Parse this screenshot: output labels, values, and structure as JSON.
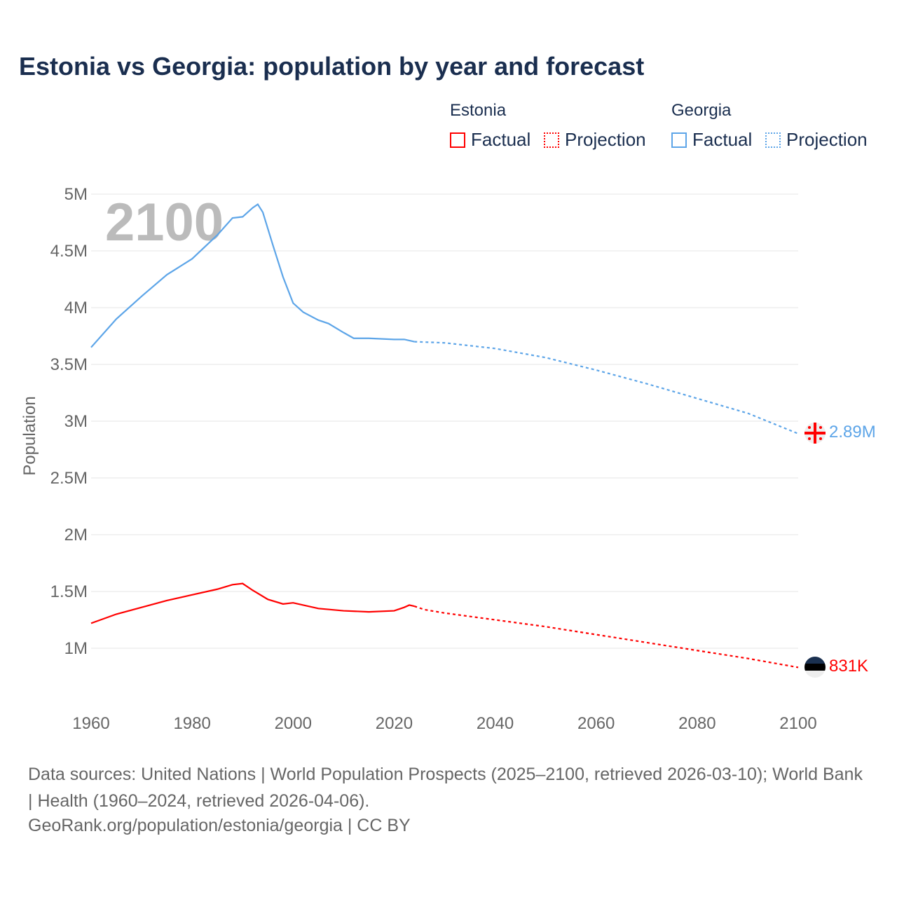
{
  "chart_data": {
    "type": "line",
    "title": "Estonia vs Georgia: population by year and forecast",
    "ylabel": "Population",
    "xlabel": "",
    "xlim": [
      1960,
      2100
    ],
    "ylim": [
      0.5,
      5
    ],
    "x_ticks": [
      1960,
      1980,
      2000,
      2020,
      2040,
      2060,
      2080,
      2100
    ],
    "x_tick_labels": [
      "1960",
      "1980",
      "2000",
      "2020",
      "2040",
      "2060",
      "2080",
      "2100"
    ],
    "y_ticks": [
      1,
      1.5,
      2,
      2.5,
      3,
      3.5,
      4,
      4.5,
      5
    ],
    "y_tick_labels": [
      "1M",
      "1.5M",
      "2M",
      "2.5M",
      "3M",
      "3.5M",
      "4M",
      "4.5M",
      "5M"
    ],
    "year_watermark": "2100",
    "series": [
      {
        "name": "Georgia",
        "color": "#5da5e8",
        "end_label": "2.89M",
        "factual": [
          [
            1960,
            3.65
          ],
          [
            1963,
            3.8
          ],
          [
            1965,
            3.9
          ],
          [
            1970,
            4.1
          ],
          [
            1975,
            4.29
          ],
          [
            1980,
            4.43
          ],
          [
            1985,
            4.64
          ],
          [
            1988,
            4.79
          ],
          [
            1990,
            4.8
          ],
          [
            1992,
            4.88
          ],
          [
            1993,
            4.91
          ],
          [
            1994,
            4.84
          ],
          [
            1996,
            4.55
          ],
          [
            1998,
            4.27
          ],
          [
            2000,
            4.04
          ],
          [
            2002,
            3.96
          ],
          [
            2005,
            3.89
          ],
          [
            2007,
            3.86
          ],
          [
            2010,
            3.78
          ],
          [
            2012,
            3.73
          ],
          [
            2015,
            3.73
          ],
          [
            2020,
            3.72
          ],
          [
            2022,
            3.72
          ],
          [
            2024,
            3.7
          ]
        ],
        "projection": [
          [
            2024,
            3.7
          ],
          [
            2030,
            3.69
          ],
          [
            2040,
            3.64
          ],
          [
            2050,
            3.56
          ],
          [
            2060,
            3.45
          ],
          [
            2070,
            3.33
          ],
          [
            2080,
            3.2
          ],
          [
            2090,
            3.07
          ],
          [
            2100,
            2.89
          ]
        ]
      },
      {
        "name": "Estonia",
        "color": "#ff0000",
        "end_label": "831K",
        "factual": [
          [
            1960,
            1.22
          ],
          [
            1965,
            1.3
          ],
          [
            1970,
            1.36
          ],
          [
            1975,
            1.42
          ],
          [
            1980,
            1.47
          ],
          [
            1985,
            1.52
          ],
          [
            1988,
            1.56
          ],
          [
            1990,
            1.57
          ],
          [
            1992,
            1.51
          ],
          [
            1995,
            1.43
          ],
          [
            1998,
            1.39
          ],
          [
            2000,
            1.4
          ],
          [
            2005,
            1.35
          ],
          [
            2010,
            1.33
          ],
          [
            2015,
            1.32
          ],
          [
            2020,
            1.33
          ],
          [
            2022,
            1.36
          ],
          [
            2023,
            1.38
          ],
          [
            2024,
            1.37
          ]
        ],
        "projection": [
          [
            2024,
            1.37
          ],
          [
            2026,
            1.34
          ],
          [
            2030,
            1.31
          ],
          [
            2040,
            1.25
          ],
          [
            2050,
            1.19
          ],
          [
            2060,
            1.12
          ],
          [
            2070,
            1.05
          ],
          [
            2080,
            0.98
          ],
          [
            2090,
            0.91
          ],
          [
            2100,
            0.831
          ]
        ]
      }
    ]
  },
  "legend": {
    "estonia": "Estonia",
    "georgia": "Georgia",
    "factual": "Factual",
    "projection": "Projection"
  },
  "footer": {
    "sources": "Data sources: United Nations | World Population Prospects (2025–2100, retrieved 2026-03-10); World Bank | Health (1960–2024, retrieved 2026-04-06).",
    "url": "GeoRank.org/population/estonia/georgia | CC BY"
  }
}
